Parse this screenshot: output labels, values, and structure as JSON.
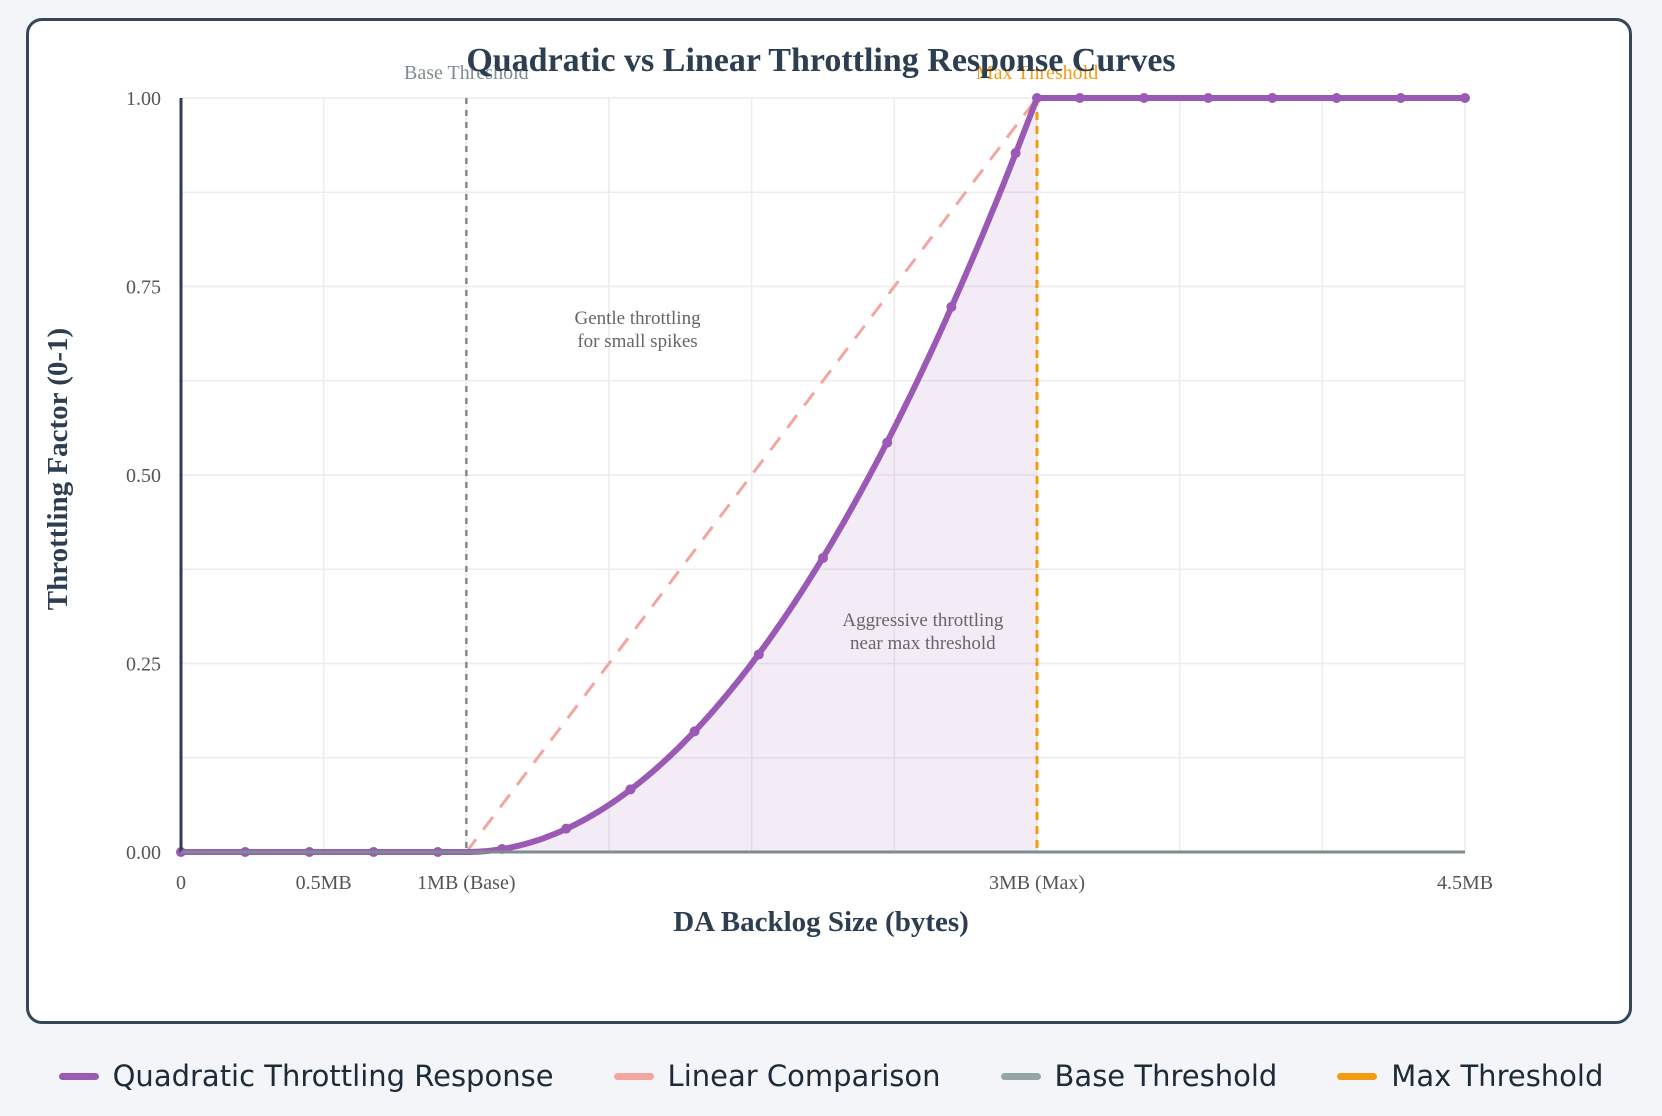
{
  "chart_data": {
    "type": "line",
    "title": "Quadratic vs Linear Throttling Response Curves",
    "xlabel": "DA Backlog Size (bytes)",
    "ylabel": "Throttling Factor (0-1)",
    "xlim": [
      0,
      4.5
    ],
    "ylim": [
      0,
      1
    ],
    "x_unit": "MB",
    "grid": true,
    "legend_position": "bottom",
    "x_ticks": [
      {
        "value": 0,
        "label": "0"
      },
      {
        "value": 0.5,
        "label": "0.5MB"
      },
      {
        "value": 1,
        "label": "1MB (Base)"
      },
      {
        "value": 3,
        "label": "3MB (Max)"
      },
      {
        "value": 4.5,
        "label": "4.5MB"
      }
    ],
    "y_ticks": [
      {
        "value": 0,
        "label": "0.00"
      },
      {
        "value": 0.25,
        "label": "0.25"
      },
      {
        "value": 0.5,
        "label": "0.50"
      },
      {
        "value": 0.75,
        "label": "0.75"
      },
      {
        "value": 1,
        "label": "1.00"
      }
    ],
    "series": [
      {
        "name": "Quadratic Throttling Response",
        "color": "#9b59b6",
        "style": "solid",
        "fill": true,
        "x": [
          0,
          0.225,
          0.45,
          0.675,
          0.9,
          1.125,
          1.35,
          1.575,
          1.8,
          2.025,
          2.25,
          2.475,
          2.7,
          2.925,
          3,
          3.15,
          3.375,
          3.6,
          3.825,
          4.05,
          4.275,
          4.5
        ],
        "y": [
          0,
          0,
          0,
          0,
          0,
          0.004,
          0.031,
          0.083,
          0.16,
          0.262,
          0.39,
          0.543,
          0.723,
          0.927,
          1,
          1,
          1,
          1,
          1,
          1,
          1,
          1
        ]
      },
      {
        "name": "Linear Comparison",
        "color": "#f1a7a0",
        "style": "dashed",
        "x": [
          1,
          3
        ],
        "y": [
          0,
          1
        ]
      }
    ],
    "thresholds": [
      {
        "name": "Base Threshold",
        "label": "Base Threshold",
        "x": 1,
        "color": "#7f8c8d"
      },
      {
        "name": "Max Threshold",
        "label": "Max Threshold",
        "x": 3,
        "color": "#f39c12"
      }
    ],
    "annotations": [
      {
        "lines": [
          "Gentle throttling",
          "for small spikes"
        ],
        "x": 1.6,
        "y": 0.7
      },
      {
        "lines": [
          "Aggressive throttling",
          "near max threshold"
        ],
        "x": 2.6,
        "y": 0.3
      }
    ]
  },
  "legend": {
    "items": [
      {
        "label": "Quadratic Throttling Response",
        "color": "#9b59b6"
      },
      {
        "label": "Linear Comparison",
        "color": "#f1a7a0"
      },
      {
        "label": "Base Threshold",
        "color": "#95a5a6"
      },
      {
        "label": "Max Threshold",
        "color": "#f39c12"
      }
    ]
  },
  "colors": {
    "axis": "#2c3e50",
    "grid": "#ececec",
    "text": "#2c3e50",
    "tick_text": "#555555",
    "annotation_text": "#666666",
    "card_border": "#34465a",
    "fill": "#9b59b6"
  }
}
